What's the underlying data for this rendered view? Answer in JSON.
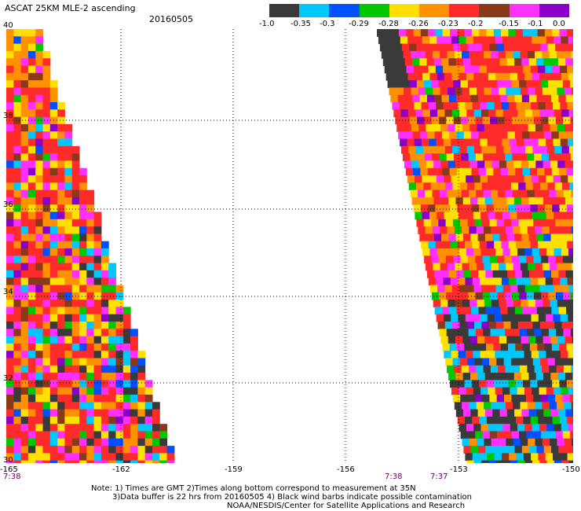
{
  "title": "ASCAT 25KM MLE-2 ascending",
  "date": "20160505",
  "colorbar": {
    "colors": [
      "#3a3a3a",
      "#00c8ff",
      "#0050ff",
      "#00c800",
      "#ffe000",
      "#ff9000",
      "#ff2a2a",
      "#8a3a1a",
      "#ff30ff",
      "#8a00c8"
    ],
    "labels": [
      "-1.0",
      "-0.35",
      "-0.3",
      "-0.29",
      "-0.28",
      "-0.26",
      "-0.23",
      "-0.2",
      "-0.15",
      "-0.1",
      "0.0"
    ]
  },
  "map": {
    "y_ticks": [
      "40",
      "38",
      "36",
      "34",
      "32",
      "30"
    ],
    "x_ticks": [
      "-165",
      "-162",
      "-159",
      "-156",
      "-153",
      "-150"
    ],
    "left_swath_time": "7:38",
    "right_swath_times": [
      "7:38",
      "7:37"
    ]
  },
  "notes": [
    "Note: 1) Times are GMT 2)Times along bottom correspond to measurement at 35N",
    "3)Data buffer is 22 hrs from 20160505 4) Black wind barbs indicate possible contamination",
    "NOAA/NESDIS/Center for Satellite Applications and Research"
  ]
}
